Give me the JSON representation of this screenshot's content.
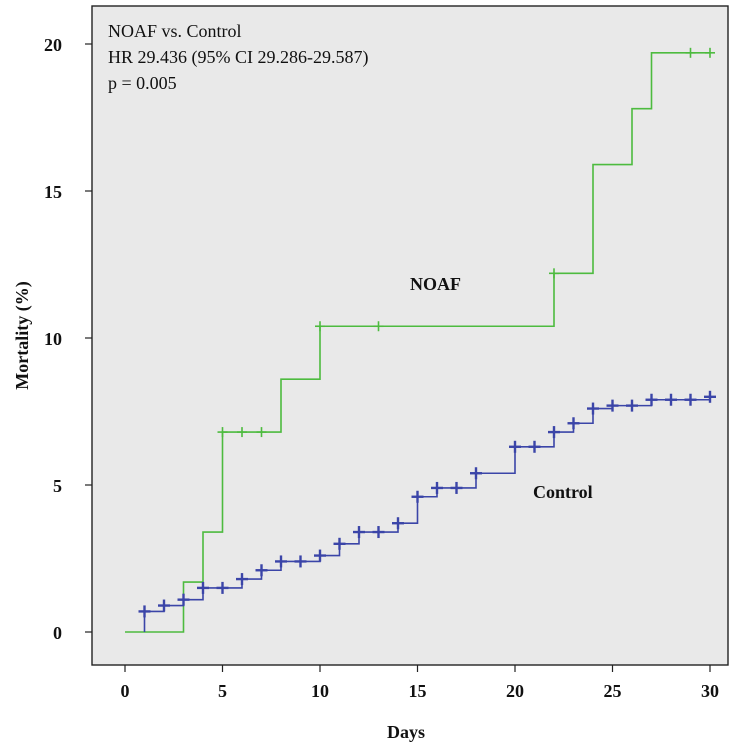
{
  "chart_data": {
    "type": "line",
    "xlabel": "Days",
    "ylabel": "Mortality (%)",
    "xlim": [
      0,
      30
    ],
    "ylim": [
      0,
      20
    ],
    "x_ticks": [
      0,
      5,
      10,
      15,
      20,
      25,
      30
    ],
    "y_ticks": [
      0,
      5,
      10,
      15,
      20
    ],
    "grid": false,
    "legend": "none",
    "annotation_lines": [
      "NOAF vs. Control",
      "HR 29.436 (95% CI 29.286-29.587)",
      "p = 0.005"
    ],
    "series": [
      {
        "name": "NOAF",
        "color": "#4dbb3f",
        "step": true,
        "points": [
          {
            "x": 0,
            "y": 0
          },
          {
            "x": 3,
            "y": 1.7
          },
          {
            "x": 4,
            "y": 3.4
          },
          {
            "x": 5,
            "y": 6.8
          },
          {
            "x": 8,
            "y": 8.6
          },
          {
            "x": 10,
            "y": 10.4
          },
          {
            "x": 22,
            "y": 12.2
          },
          {
            "x": 24,
            "y": 15.9
          },
          {
            "x": 26,
            "y": 17.8
          },
          {
            "x": 27,
            "y": 19.7
          },
          {
            "x": 30,
            "y": 19.7
          }
        ],
        "censor_marks": [
          {
            "x": 5,
            "y": 6.8
          },
          {
            "x": 6,
            "y": 6.8
          },
          {
            "x": 7,
            "y": 6.8
          },
          {
            "x": 10,
            "y": 10.4
          },
          {
            "x": 13,
            "y": 10.4
          },
          {
            "x": 22,
            "y": 12.2
          },
          {
            "x": 29,
            "y": 19.7
          },
          {
            "x": 30,
            "y": 19.7
          }
        ]
      },
      {
        "name": "Control",
        "color": "#3b45a8",
        "step": true,
        "points": [
          {
            "x": 1,
            "y": 0
          },
          {
            "x": 1,
            "y": 0.7
          },
          {
            "x": 2,
            "y": 0.9
          },
          {
            "x": 3,
            "y": 1.1
          },
          {
            "x": 4,
            "y": 1.5
          },
          {
            "x": 5,
            "y": 1.5
          },
          {
            "x": 6,
            "y": 1.8
          },
          {
            "x": 7,
            "y": 2.1
          },
          {
            "x": 8,
            "y": 2.4
          },
          {
            "x": 9,
            "y": 2.4
          },
          {
            "x": 10,
            "y": 2.6
          },
          {
            "x": 11,
            "y": 3.0
          },
          {
            "x": 12,
            "y": 3.4
          },
          {
            "x": 13,
            "y": 3.4
          },
          {
            "x": 14,
            "y": 3.7
          },
          {
            "x": 15,
            "y": 4.6
          },
          {
            "x": 16,
            "y": 4.9
          },
          {
            "x": 17,
            "y": 4.9
          },
          {
            "x": 18,
            "y": 5.4
          },
          {
            "x": 20,
            "y": 6.3
          },
          {
            "x": 21,
            "y": 6.3
          },
          {
            "x": 22,
            "y": 6.8
          },
          {
            "x": 23,
            "y": 7.1
          },
          {
            "x": 24,
            "y": 7.6
          },
          {
            "x": 25,
            "y": 7.7
          },
          {
            "x": 26,
            "y": 7.7
          },
          {
            "x": 27,
            "y": 7.9
          },
          {
            "x": 28,
            "y": 7.9
          },
          {
            "x": 29,
            "y": 7.9
          },
          {
            "x": 30,
            "y": 8.0
          }
        ],
        "censor_marks": [
          {
            "x": 1,
            "y": 0.7
          },
          {
            "x": 2,
            "y": 0.9
          },
          {
            "x": 3,
            "y": 1.1
          },
          {
            "x": 4,
            "y": 1.5
          },
          {
            "x": 5,
            "y": 1.5
          },
          {
            "x": 6,
            "y": 1.8
          },
          {
            "x": 7,
            "y": 2.1
          },
          {
            "x": 8,
            "y": 2.4
          },
          {
            "x": 9,
            "y": 2.4
          },
          {
            "x": 10,
            "y": 2.6
          },
          {
            "x": 11,
            "y": 3.0
          },
          {
            "x": 12,
            "y": 3.4
          },
          {
            "x": 13,
            "y": 3.4
          },
          {
            "x": 14,
            "y": 3.7
          },
          {
            "x": 15,
            "y": 4.6
          },
          {
            "x": 16,
            "y": 4.9
          },
          {
            "x": 17,
            "y": 4.9
          },
          {
            "x": 18,
            "y": 5.4
          },
          {
            "x": 20,
            "y": 6.3
          },
          {
            "x": 21,
            "y": 6.3
          },
          {
            "x": 22,
            "y": 6.8
          },
          {
            "x": 23,
            "y": 7.1
          },
          {
            "x": 24,
            "y": 7.6
          },
          {
            "x": 25,
            "y": 7.7
          },
          {
            "x": 26,
            "y": 7.7
          },
          {
            "x": 27,
            "y": 7.9
          },
          {
            "x": 28,
            "y": 7.9
          },
          {
            "x": 29,
            "y": 7.9
          },
          {
            "x": 30,
            "y": 8.0
          }
        ]
      }
    ]
  }
}
